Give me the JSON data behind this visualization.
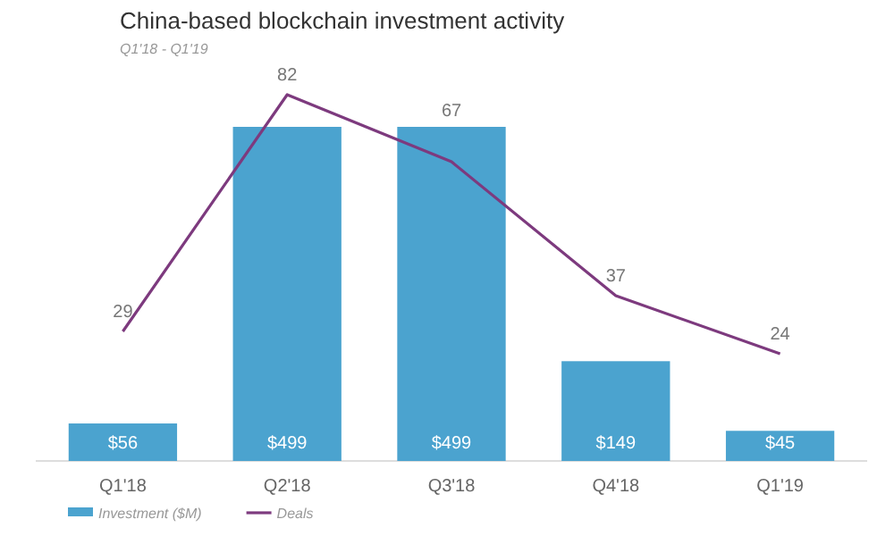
{
  "chart_data": {
    "type": "bar",
    "title": "China-based blockchain investment activity",
    "subtitle": "Q1'18 - Q1'19",
    "categories": [
      "Q1'18",
      "Q2'18",
      "Q3'18",
      "Q4'18",
      "Q1'19"
    ],
    "series": [
      {
        "name": "Investment ($M)",
        "color": "#4ba3cf",
        "values": [
          56,
          499,
          499,
          149,
          45
        ],
        "value_labels": [
          "$56",
          "$499",
          "$499",
          "$149",
          "$45"
        ]
      },
      {
        "name": "Deals",
        "type": "line",
        "axis": "y2",
        "color": "#7d3a7e",
        "values": [
          29,
          82,
          67,
          37,
          24
        ],
        "data_labels": true
      }
    ],
    "legend": "bottom left",
    "marker": "none",
    "line_style": "solid"
  }
}
